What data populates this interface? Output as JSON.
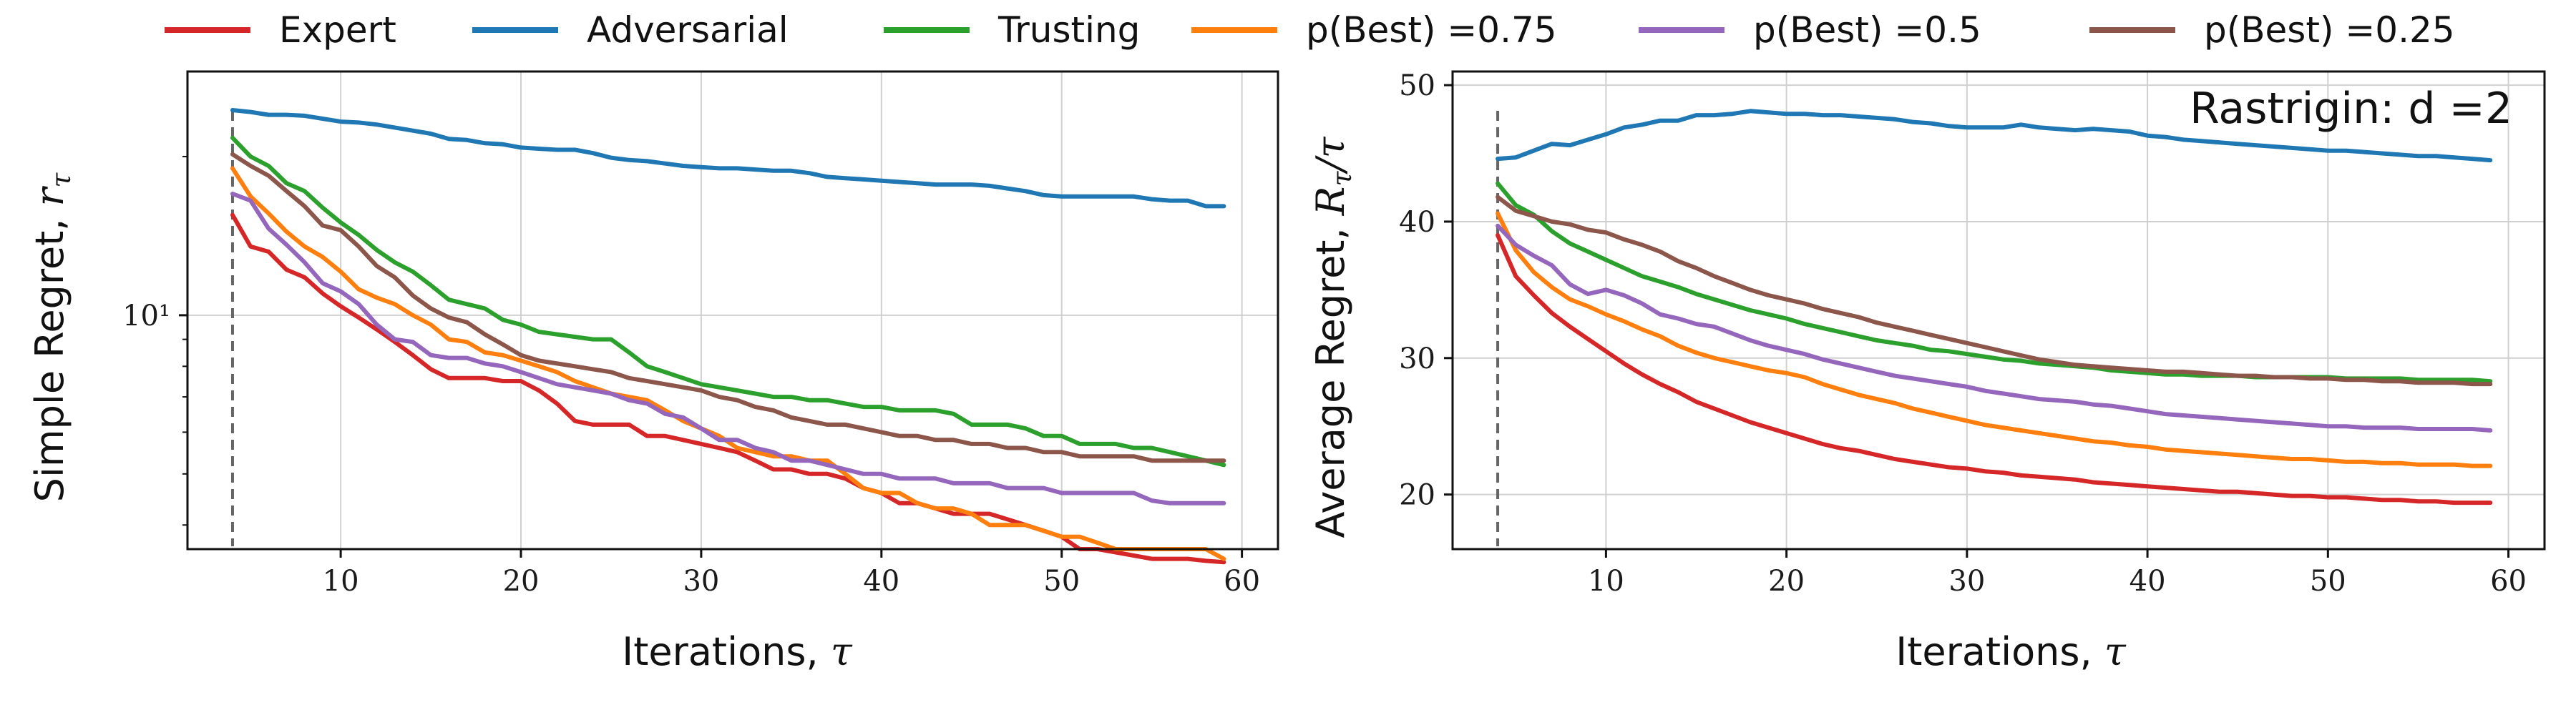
{
  "legend": [
    {
      "key": "expert",
      "label": "Expert",
      "color": "#d62728"
    },
    {
      "key": "adversarial",
      "label": "Adversarial",
      "color": "#1f77b4"
    },
    {
      "key": "trusting",
      "label": "Trusting",
      "color": "#2ca02c"
    },
    {
      "key": "pb075",
      "label": "p(Best) =0.75",
      "color": "#ff7f0e"
    },
    {
      "key": "pb05",
      "label": "p(Best) =0.5",
      "color": "#9467bd"
    },
    {
      "key": "pb025",
      "label": "p(Best) =0.25",
      "color": "#8c564b"
    }
  ],
  "chart_data": [
    {
      "type": "line",
      "ylabel": "Simple Regret, r_τ",
      "xlabel": "Iterations, τ",
      "yscale": "log",
      "xlim": [
        1.5,
        62
      ],
      "ylim": [
        3.6,
        29
      ],
      "xticks": [
        10,
        20,
        30,
        40,
        50,
        60
      ],
      "yticks": [
        {
          "value": 10,
          "label": "10¹"
        }
      ],
      "grid": true,
      "vline_x": 4,
      "x": [
        4,
        5,
        6,
        7,
        8,
        9,
        10,
        11,
        12,
        13,
        14,
        15,
        16,
        17,
        18,
        19,
        20,
        21,
        22,
        23,
        24,
        25,
        26,
        27,
        28,
        29,
        30,
        31,
        32,
        33,
        34,
        35,
        36,
        37,
        38,
        39,
        40,
        41,
        42,
        43,
        44,
        45,
        46,
        47,
        48,
        49,
        50,
        51,
        52,
        53,
        54,
        55,
        56,
        57,
        58,
        59
      ],
      "series": [
        {
          "name": "Expert",
          "key": "expert",
          "values": [
            15.5,
            13.5,
            13.2,
            12.2,
            11.8,
            11.0,
            10.4,
            9.9,
            9.4,
            8.9,
            8.4,
            7.9,
            7.6,
            7.6,
            7.6,
            7.5,
            7.5,
            7.2,
            6.8,
            6.3,
            6.2,
            6.2,
            6.2,
            5.9,
            5.9,
            5.8,
            5.7,
            5.6,
            5.5,
            5.3,
            5.1,
            5.1,
            5.0,
            5.0,
            4.9,
            4.7,
            4.6,
            4.4,
            4.4,
            4.3,
            4.2,
            4.2,
            4.2,
            4.1,
            4.0,
            3.9,
            3.8,
            3.6,
            3.6,
            3.55,
            3.5,
            3.45,
            3.45,
            3.45,
            3.42,
            3.4
          ]
        },
        {
          "name": "Adversarial",
          "key": "adversarial",
          "values": [
            24.5,
            24.3,
            24.0,
            24.0,
            23.9,
            23.6,
            23.3,
            23.2,
            23.0,
            22.7,
            22.4,
            22.1,
            21.6,
            21.5,
            21.2,
            21.1,
            20.8,
            20.7,
            20.6,
            20.6,
            20.3,
            19.9,
            19.7,
            19.6,
            19.4,
            19.2,
            19.1,
            19.0,
            19.0,
            18.9,
            18.8,
            18.8,
            18.6,
            18.3,
            18.2,
            18.1,
            18.0,
            17.9,
            17.8,
            17.7,
            17.7,
            17.7,
            17.6,
            17.4,
            17.2,
            16.9,
            16.8,
            16.8,
            16.8,
            16.8,
            16.8,
            16.6,
            16.5,
            16.5,
            16.1,
            16.1
          ]
        },
        {
          "name": "Trusting",
          "key": "trusting",
          "values": [
            21.7,
            20.0,
            19.2,
            17.8,
            17.2,
            16.0,
            15.0,
            14.2,
            13.3,
            12.6,
            12.1,
            11.4,
            10.7,
            10.5,
            10.3,
            9.8,
            9.6,
            9.3,
            9.2,
            9.1,
            9.0,
            9.0,
            8.5,
            8.0,
            7.8,
            7.6,
            7.4,
            7.3,
            7.2,
            7.1,
            7.0,
            7.0,
            6.9,
            6.9,
            6.8,
            6.7,
            6.7,
            6.6,
            6.6,
            6.6,
            6.5,
            6.2,
            6.2,
            6.2,
            6.1,
            5.9,
            5.9,
            5.7,
            5.7,
            5.7,
            5.6,
            5.6,
            5.5,
            5.4,
            5.3,
            5.2
          ]
        },
        {
          "name": "p(Best) =0.75",
          "key": "pb075",
          "values": [
            19.0,
            16.8,
            15.6,
            14.4,
            13.5,
            12.9,
            12.1,
            11.2,
            10.8,
            10.5,
            10.0,
            9.6,
            9.0,
            8.9,
            8.5,
            8.4,
            8.2,
            8.0,
            7.8,
            7.5,
            7.3,
            7.1,
            7.0,
            6.9,
            6.6,
            6.3,
            6.1,
            5.9,
            5.6,
            5.5,
            5.4,
            5.4,
            5.3,
            5.3,
            5.0,
            4.7,
            4.6,
            4.6,
            4.4,
            4.3,
            4.3,
            4.2,
            4.0,
            4.0,
            4.0,
            3.9,
            3.8,
            3.8,
            3.7,
            3.6,
            3.6,
            3.6,
            3.6,
            3.6,
            3.6,
            3.45
          ]
        },
        {
          "name": "p(Best) =0.5",
          "key": "pb05",
          "values": [
            17.0,
            16.5,
            14.6,
            13.6,
            12.6,
            11.5,
            11.1,
            10.5,
            9.6,
            9.0,
            8.9,
            8.4,
            8.3,
            8.3,
            8.1,
            8.0,
            7.8,
            7.6,
            7.4,
            7.3,
            7.2,
            7.1,
            6.9,
            6.8,
            6.5,
            6.4,
            6.1,
            5.8,
            5.8,
            5.6,
            5.5,
            5.3,
            5.3,
            5.2,
            5.1,
            5.0,
            5.0,
            4.9,
            4.9,
            4.9,
            4.8,
            4.8,
            4.8,
            4.7,
            4.7,
            4.7,
            4.6,
            4.6,
            4.6,
            4.6,
            4.6,
            4.45,
            4.4,
            4.4,
            4.4,
            4.4
          ]
        },
        {
          "name": "p(Best) =0.25",
          "key": "pb025",
          "values": [
            20.2,
            19.2,
            18.4,
            17.2,
            16.1,
            14.8,
            14.5,
            13.5,
            12.4,
            11.8,
            10.9,
            10.3,
            9.9,
            9.7,
            9.2,
            8.8,
            8.4,
            8.2,
            8.1,
            8.0,
            7.9,
            7.8,
            7.6,
            7.5,
            7.4,
            7.3,
            7.2,
            7.0,
            6.9,
            6.7,
            6.6,
            6.4,
            6.3,
            6.2,
            6.2,
            6.1,
            6.0,
            5.9,
            5.9,
            5.8,
            5.8,
            5.7,
            5.7,
            5.6,
            5.6,
            5.5,
            5.5,
            5.4,
            5.4,
            5.4,
            5.4,
            5.3,
            5.3,
            5.3,
            5.3,
            5.3
          ]
        }
      ]
    },
    {
      "type": "line",
      "ylabel": "Average Regret, R_τ/τ",
      "xlabel": "Iterations, τ",
      "yscale": "linear",
      "xlim": [
        1.5,
        62
      ],
      "ylim": [
        16,
        51
      ],
      "xticks": [
        10,
        20,
        30,
        40,
        50,
        60
      ],
      "yticks": [
        {
          "value": 20,
          "label": "20"
        },
        {
          "value": 30,
          "label": "30"
        },
        {
          "value": 40,
          "label": "40"
        },
        {
          "value": 50,
          "label": "50"
        }
      ],
      "grid": true,
      "vline_x": 4,
      "annotation": "Rastrigin: d =2",
      "x": [
        4,
        5,
        6,
        7,
        8,
        9,
        10,
        11,
        12,
        13,
        14,
        15,
        16,
        17,
        18,
        19,
        20,
        21,
        22,
        23,
        24,
        25,
        26,
        27,
        28,
        29,
        30,
        31,
        32,
        33,
        34,
        35,
        36,
        37,
        38,
        39,
        40,
        41,
        42,
        43,
        44,
        45,
        46,
        47,
        48,
        49,
        50,
        51,
        52,
        53,
        54,
        55,
        56,
        57,
        58,
        59
      ],
      "series": [
        {
          "name": "Expert",
          "key": "expert",
          "values": [
            39.0,
            36.0,
            34.6,
            33.3,
            32.3,
            31.4,
            30.5,
            29.6,
            28.8,
            28.1,
            27.5,
            26.8,
            26.3,
            25.8,
            25.3,
            24.9,
            24.5,
            24.1,
            23.7,
            23.4,
            23.2,
            22.9,
            22.6,
            22.4,
            22.2,
            22.0,
            21.9,
            21.7,
            21.6,
            21.4,
            21.3,
            21.2,
            21.1,
            20.9,
            20.8,
            20.7,
            20.6,
            20.5,
            20.4,
            20.3,
            20.2,
            20.2,
            20.1,
            20.0,
            19.9,
            19.9,
            19.8,
            19.8,
            19.7,
            19.6,
            19.6,
            19.5,
            19.5,
            19.4,
            19.4,
            19.4
          ]
        },
        {
          "name": "Adversarial",
          "key": "adversarial",
          "values": [
            44.6,
            44.7,
            45.2,
            45.7,
            45.6,
            46.0,
            46.4,
            46.9,
            47.1,
            47.4,
            47.4,
            47.8,
            47.8,
            47.9,
            48.1,
            48.0,
            47.9,
            47.9,
            47.8,
            47.8,
            47.7,
            47.6,
            47.5,
            47.3,
            47.2,
            47.0,
            46.9,
            46.9,
            46.9,
            47.1,
            46.9,
            46.8,
            46.7,
            46.8,
            46.7,
            46.6,
            46.3,
            46.2,
            46.0,
            45.9,
            45.8,
            45.7,
            45.6,
            45.5,
            45.4,
            45.3,
            45.2,
            45.2,
            45.1,
            45.0,
            44.9,
            44.8,
            44.8,
            44.7,
            44.6,
            44.5
          ]
        },
        {
          "name": "Trusting",
          "key": "trusting",
          "values": [
            42.8,
            41.2,
            40.5,
            39.3,
            38.4,
            37.8,
            37.2,
            36.6,
            36.0,
            35.6,
            35.2,
            34.7,
            34.3,
            33.9,
            33.5,
            33.2,
            32.9,
            32.5,
            32.2,
            31.9,
            31.6,
            31.3,
            31.1,
            30.9,
            30.6,
            30.5,
            30.3,
            30.1,
            29.9,
            29.8,
            29.6,
            29.5,
            29.4,
            29.3,
            29.1,
            29.0,
            28.9,
            28.8,
            28.8,
            28.7,
            28.7,
            28.7,
            28.6,
            28.6,
            28.6,
            28.6,
            28.6,
            28.5,
            28.5,
            28.5,
            28.5,
            28.4,
            28.4,
            28.4,
            28.4,
            28.3
          ]
        },
        {
          "name": "p(Best) =0.75",
          "key": "pb075",
          "values": [
            40.6,
            37.9,
            36.3,
            35.2,
            34.3,
            33.8,
            33.2,
            32.7,
            32.1,
            31.6,
            30.9,
            30.4,
            30.0,
            29.7,
            29.4,
            29.1,
            28.9,
            28.6,
            28.1,
            27.7,
            27.3,
            27.0,
            26.7,
            26.3,
            26.0,
            25.7,
            25.4,
            25.1,
            24.9,
            24.7,
            24.5,
            24.3,
            24.1,
            23.9,
            23.8,
            23.6,
            23.5,
            23.3,
            23.2,
            23.1,
            23.0,
            22.9,
            22.8,
            22.7,
            22.6,
            22.6,
            22.5,
            22.4,
            22.4,
            22.3,
            22.3,
            22.2,
            22.2,
            22.2,
            22.1,
            22.1
          ]
        },
        {
          "name": "p(Best) =0.5",
          "key": "pb05",
          "values": [
            39.7,
            38.3,
            37.5,
            36.8,
            35.4,
            34.7,
            35.0,
            34.6,
            34.0,
            33.2,
            32.9,
            32.5,
            32.3,
            31.8,
            31.3,
            30.9,
            30.6,
            30.3,
            29.9,
            29.6,
            29.3,
            29.0,
            28.7,
            28.5,
            28.3,
            28.1,
            27.9,
            27.6,
            27.4,
            27.2,
            27.0,
            26.9,
            26.8,
            26.6,
            26.5,
            26.3,
            26.1,
            25.9,
            25.8,
            25.7,
            25.6,
            25.5,
            25.4,
            25.3,
            25.2,
            25.1,
            25.0,
            25.0,
            24.9,
            24.9,
            24.9,
            24.8,
            24.8,
            24.8,
            24.8,
            24.7
          ]
        },
        {
          "name": "p(Best) =0.25",
          "key": "pb025",
          "values": [
            41.8,
            40.8,
            40.4,
            40.0,
            39.8,
            39.4,
            39.2,
            38.7,
            38.3,
            37.8,
            37.1,
            36.6,
            36.0,
            35.5,
            35.0,
            34.6,
            34.3,
            34.0,
            33.6,
            33.3,
            33.0,
            32.6,
            32.3,
            32.0,
            31.7,
            31.4,
            31.1,
            30.8,
            30.5,
            30.2,
            29.9,
            29.7,
            29.5,
            29.4,
            29.3,
            29.2,
            29.1,
            29.0,
            29.0,
            28.9,
            28.8,
            28.7,
            28.7,
            28.6,
            28.6,
            28.5,
            28.5,
            28.4,
            28.4,
            28.3,
            28.3,
            28.2,
            28.2,
            28.2,
            28.1,
            28.1
          ]
        }
      ]
    }
  ]
}
